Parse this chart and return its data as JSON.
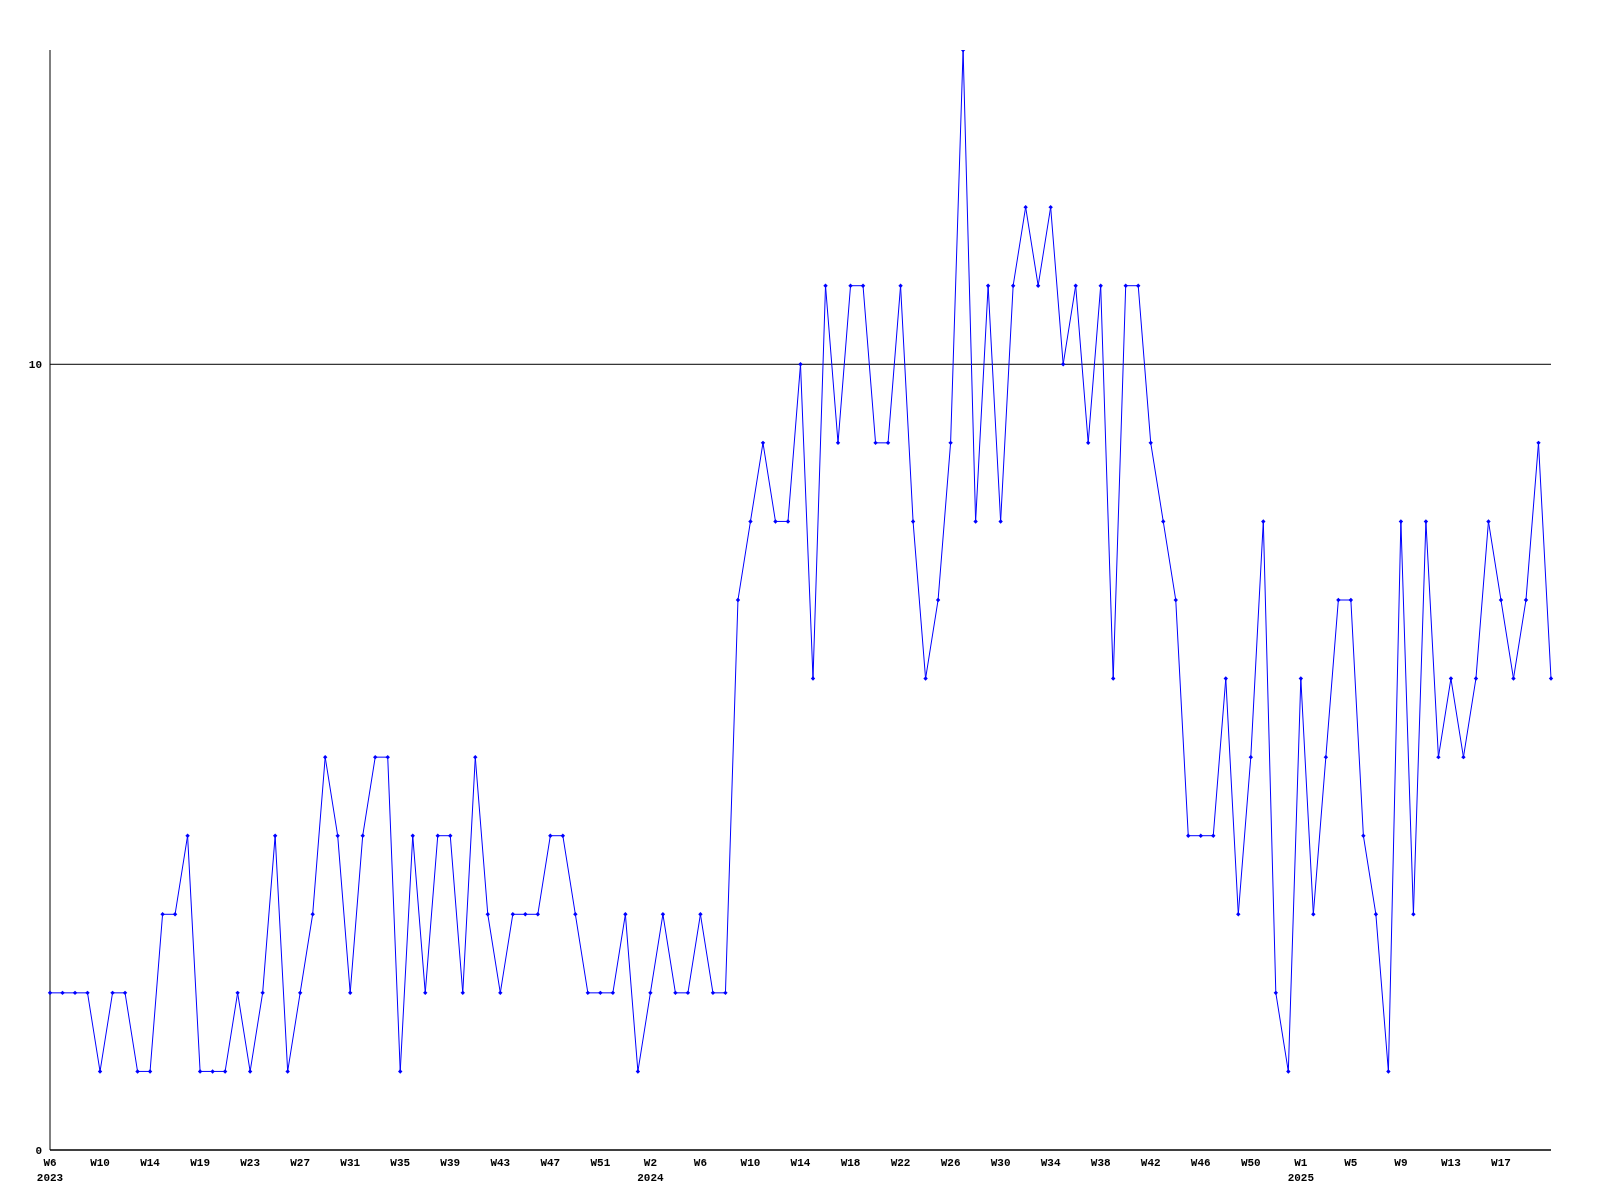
{
  "chart_data": {
    "type": "line",
    "categories": [
      "W6\n2023",
      null,
      null,
      null,
      "W10",
      null,
      null,
      null,
      "W14",
      null,
      null,
      null,
      "W19",
      null,
      null,
      null,
      "W23",
      null,
      null,
      null,
      "W27",
      null,
      null,
      null,
      "W31",
      null,
      null,
      null,
      "W35",
      null,
      null,
      null,
      "W39",
      null,
      null,
      null,
      "W43",
      null,
      null,
      null,
      "W47",
      null,
      null,
      null,
      "W51",
      null,
      null,
      null,
      "W2\n2024",
      null,
      null,
      null,
      "W6",
      null,
      null,
      null,
      "W10",
      null,
      null,
      null,
      "W14",
      null,
      null,
      null,
      "W18",
      null,
      null,
      null,
      "W22",
      null,
      null,
      null,
      "W26",
      null,
      null,
      null,
      "W30",
      null,
      null,
      null,
      "W34",
      null,
      null,
      null,
      "W38",
      null,
      null,
      null,
      "W42",
      null,
      null,
      null,
      "W46",
      null,
      null,
      null,
      "W50",
      null,
      null,
      null,
      "W1\n2025",
      null,
      null,
      null,
      "W5",
      null,
      null,
      null,
      "W9",
      null,
      null,
      null,
      "W13",
      null,
      null,
      null,
      "W17",
      null,
      null,
      null,
      null
    ],
    "series": [
      {
        "color": "#0000ff",
        "values": [
          2,
          2,
          2,
          2,
          1,
          2,
          2,
          1,
          1,
          3,
          3,
          4,
          1,
          1,
          1,
          2,
          1,
          2,
          4,
          1,
          2,
          3,
          5,
          4,
          2,
          4,
          5,
          5,
          1,
          4,
          2,
          4,
          4,
          2,
          5,
          3,
          2,
          3,
          3,
          3,
          4,
          4,
          3,
          2,
          2,
          2,
          3,
          1,
          2,
          3,
          2,
          2,
          3,
          2,
          2,
          7,
          8,
          9,
          8,
          8,
          10,
          6,
          11,
          9,
          11,
          11,
          9,
          9,
          11,
          8,
          6,
          7,
          9,
          14,
          8,
          11,
          8,
          11,
          12,
          11,
          12,
          10,
          11,
          9,
          11,
          6,
          11,
          11,
          9,
          8,
          7,
          4,
          4,
          4,
          6,
          3,
          5,
          8,
          2,
          1,
          6,
          3,
          5,
          7,
          7,
          4,
          3,
          1,
          8,
          3,
          8,
          5,
          6,
          5,
          6,
          8,
          7,
          6,
          7,
          9,
          6
        ]
      }
    ],
    "ylim": [
      0,
      14
    ],
    "yticks": [
      0,
      10
    ],
    "grid": "y",
    "marker": "diamond",
    "line_style": "solid"
  }
}
